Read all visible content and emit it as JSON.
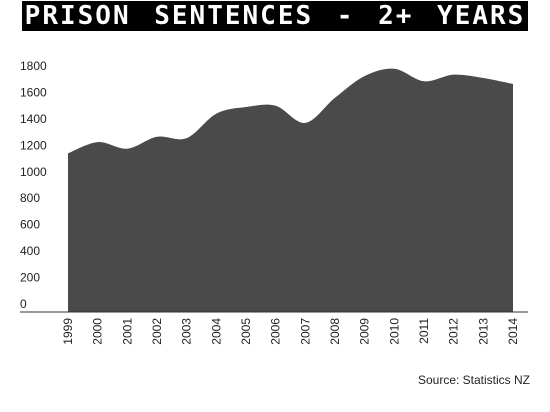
{
  "chart_data": {
    "type": "area",
    "title": "PRISON SENTENCES - 2+ YEARS",
    "source": "Source: Statistics NZ",
    "categories": [
      "1999",
      "2000",
      "2001",
      "2002",
      "2003",
      "2004",
      "2005",
      "2006",
      "2007",
      "2008",
      "2009",
      "2010",
      "2011",
      "2012",
      "2013",
      "2014"
    ],
    "series": [
      {
        "name": "Prison sentences",
        "color": "#4a4a4a",
        "values": [
          1200,
          1285,
          1235,
          1325,
          1315,
          1500,
          1550,
          1560,
          1430,
          1620,
          1785,
          1840,
          1745,
          1795,
          1770,
          1725
        ]
      }
    ],
    "ylim": [
      0,
      1800
    ],
    "yticks": [
      0,
      200,
      400,
      600,
      800,
      1000,
      1200,
      1400,
      1600,
      1800
    ],
    "grid": false
  }
}
